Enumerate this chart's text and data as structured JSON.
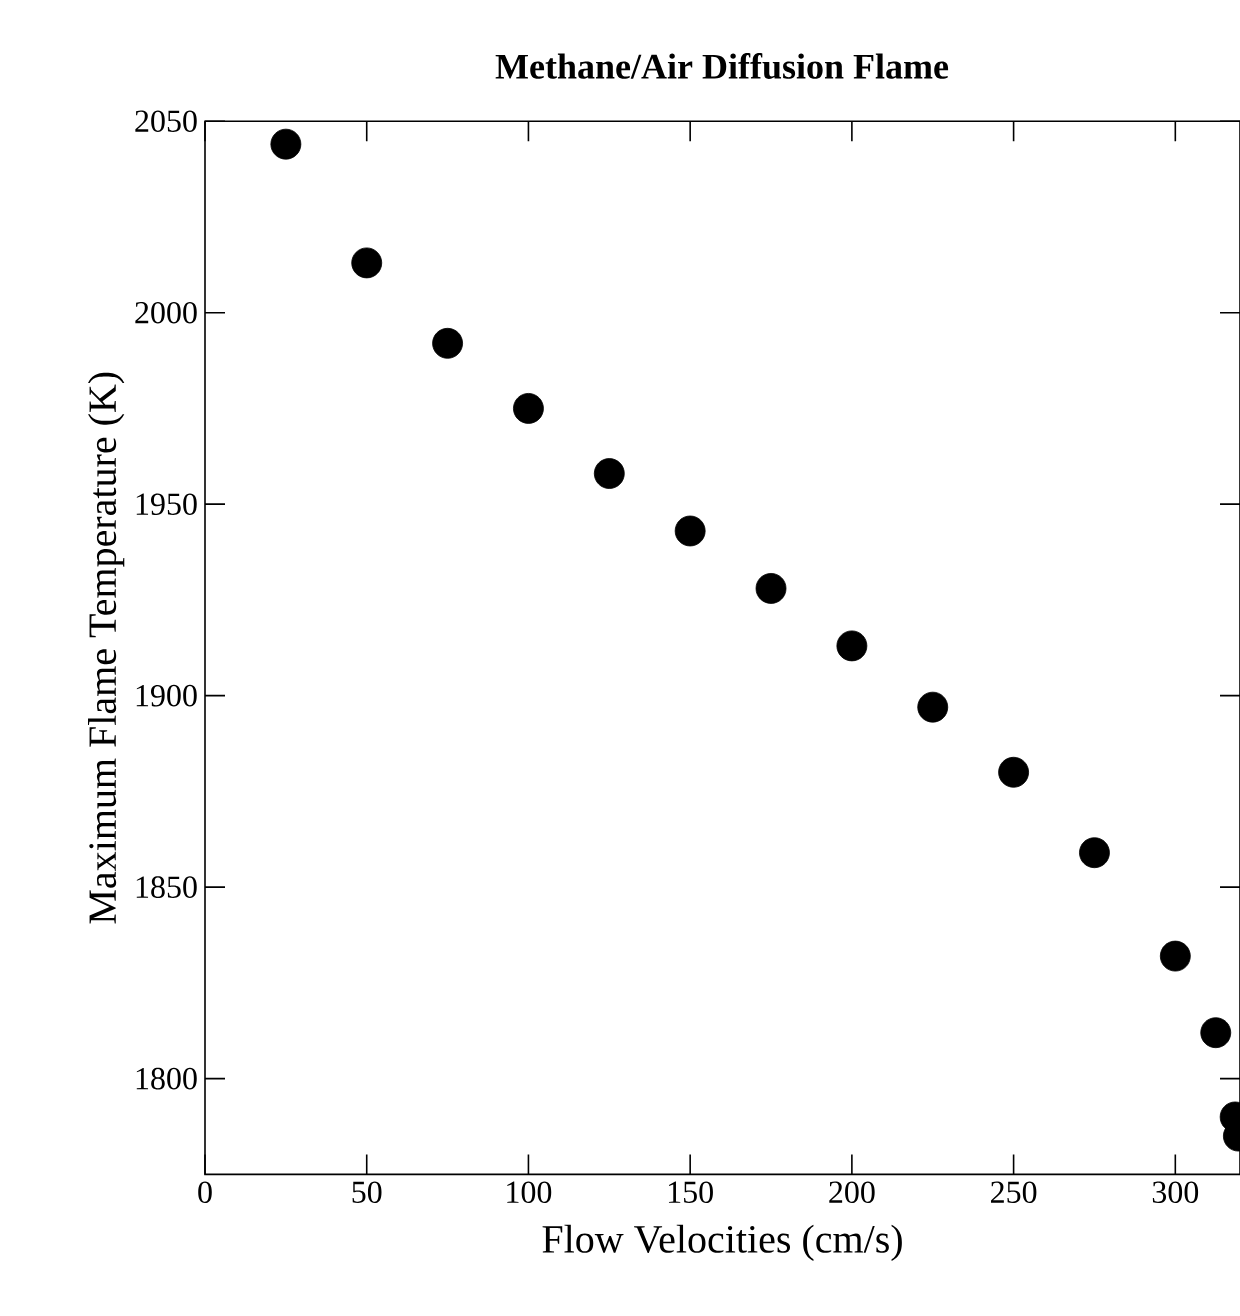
{
  "chart_data": {
    "type": "scatter",
    "title": "**Methane/Air Diffusion Flame**",
    "xlabel": "Flow Velocities (cm/s)",
    "ylabel": "Maximum Flame Temperature (K)",
    "x": [
      25,
      50,
      75,
      100,
      125,
      150,
      175,
      200,
      225,
      250,
      275,
      300,
      312.5,
      318.5,
      319.5
    ],
    "series": [
      {
        "color": "#000000",
        "values": [
          2044,
          2013,
          1992,
          1975,
          1958,
          1943,
          1928,
          1913,
          1897,
          1880,
          1859,
          1832,
          1812,
          1790,
          1785
        ]
      }
    ],
    "xlim": [
      0,
      320
    ],
    "ylim": [
      1775,
      2050
    ],
    "xticks": [
      0,
      50,
      100,
      150,
      200,
      250,
      300
    ],
    "yticks": [
      1800,
      1850,
      1900,
      1950,
      2000,
      2050
    ],
    "marker": "circle",
    "grid": false,
    "legend": false
  }
}
